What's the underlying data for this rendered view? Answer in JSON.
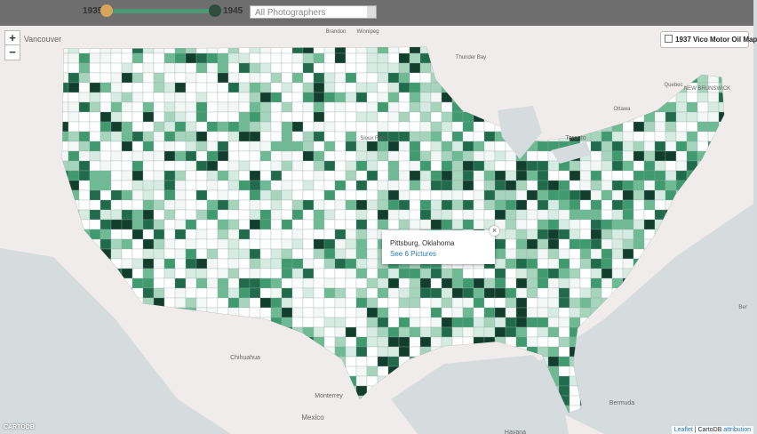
{
  "controls": {
    "year_start": "1935",
    "year_end": "1945",
    "photographer_select": "All Photographers",
    "zoom_in": "+",
    "zoom_out": "−",
    "overlay_toggle": "1937 Vico Motor Oil Map"
  },
  "popup": {
    "place": "Pittsburg, Oklahoma",
    "link": "See 6 Pictures",
    "close": "×"
  },
  "map_labels": [
    "Vancouver",
    "Brandon",
    "Winnipeg",
    "Thunder Bay",
    "Toronto",
    "Ottawa",
    "Quebec",
    "NEW BRUNSWICK",
    "Sioux Falls",
    "Chihuahua",
    "Monterrey",
    "Mexico",
    "Havana",
    "Bermuda",
    "Ber"
  ],
  "attribution": {
    "leaflet": "Leaflet",
    "separator": "|",
    "cartodb": "CartoDB",
    "link": "attribution",
    "logo": "CARTODB"
  }
}
